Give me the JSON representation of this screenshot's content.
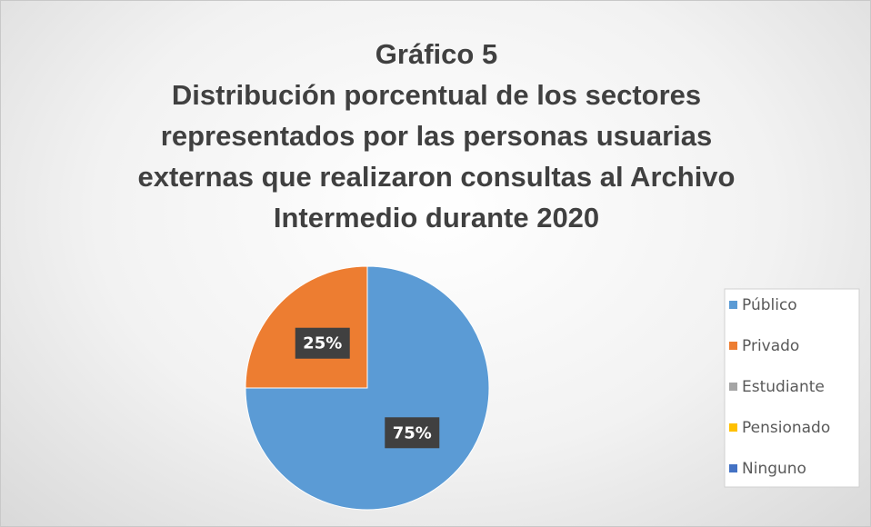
{
  "chart_data": {
    "type": "pie",
    "title": "Gráfico 5",
    "subtitle": "Distribución porcentual de los sectores representados por las personas usuarias externas que realizaron consultas al Archivo Intermedio durante 2020",
    "categories": [
      "Público",
      "Privado",
      "Estudiante",
      "Pensionado",
      "Ninguno"
    ],
    "values": [
      75,
      25,
      0,
      0,
      0
    ],
    "value_labels": [
      "75%",
      "25%",
      null,
      null,
      null
    ],
    "colors": [
      "#5b9bd5",
      "#ed7d31",
      "#a5a5a5",
      "#ffc000",
      "#4472c4"
    ],
    "legend": "right"
  }
}
